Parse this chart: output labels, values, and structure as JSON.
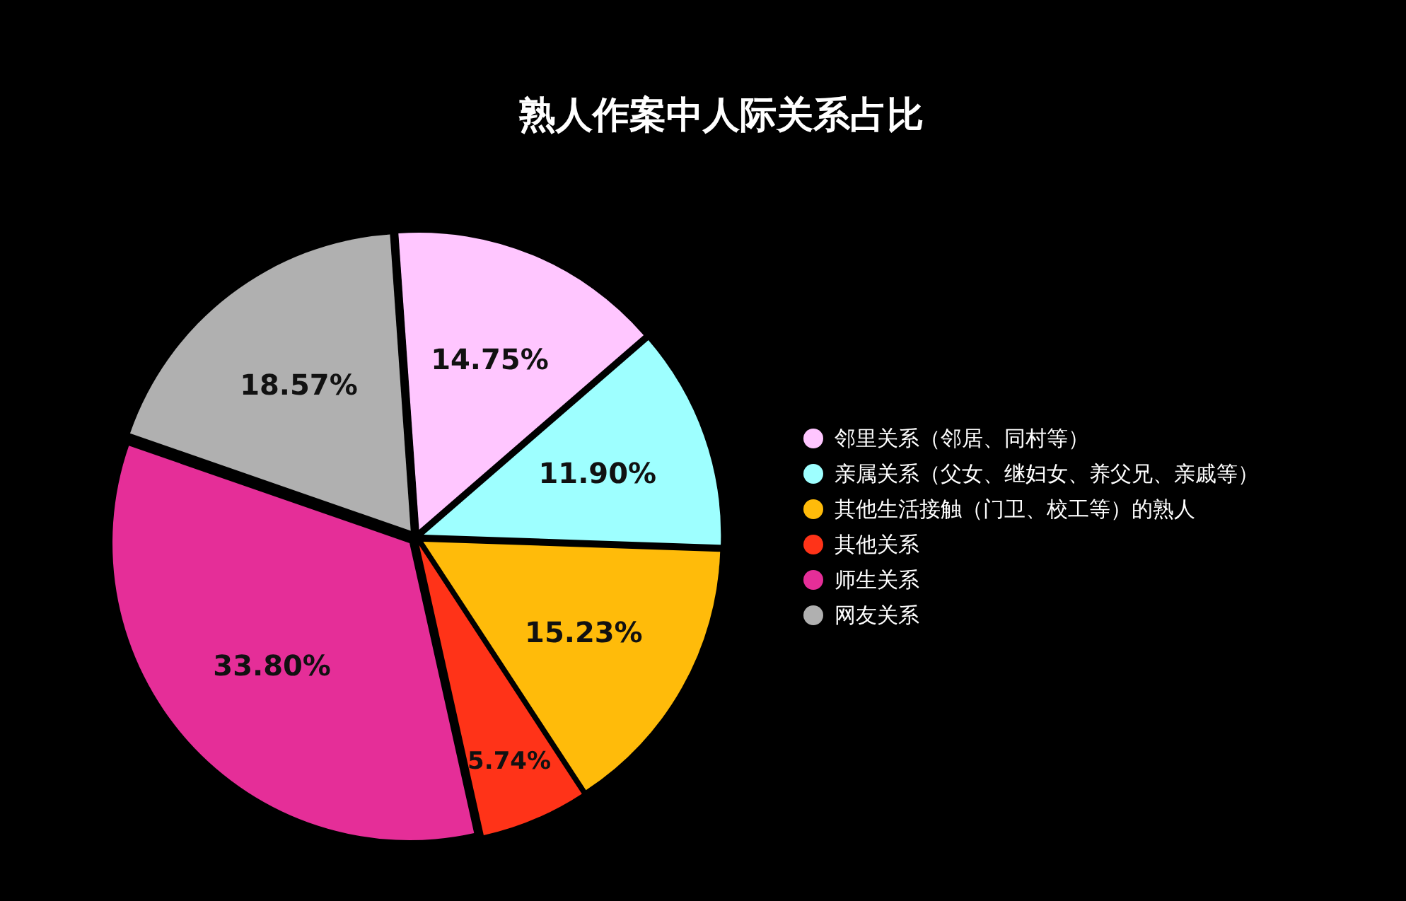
{
  "chart_data": {
    "type": "pie",
    "title": "熟人作案中人际关系占比",
    "categories": [
      "邻里关系（邻居、同村等）",
      "亲属关系（父女、继妇女、养父兄、亲戚等）",
      "其他生活接触（门卫、校工等）的熟人",
      "其他关系",
      "师生关系",
      "网友关系"
    ],
    "values": [
      14.75,
      11.9,
      15.23,
      5.74,
      33.8,
      18.57
    ],
    "value_labels": [
      "14.75%",
      "11.90%",
      "15.23%",
      "5.74%",
      "33.80%",
      "18.57%"
    ],
    "colors": [
      "#ffc6ff",
      "#9effff",
      "#ffbb0a",
      "#ff3318",
      "#e52e98",
      "#b0b0b0"
    ],
    "legend": "right"
  }
}
